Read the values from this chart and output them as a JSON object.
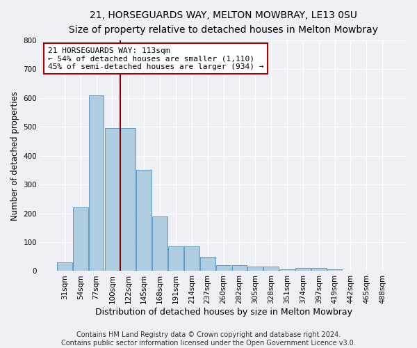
{
  "title1": "21, HORSEGUARDS WAY, MELTON MOWBRAY, LE13 0SU",
  "title2": "Size of property relative to detached houses in Melton Mowbray",
  "xlabel": "Distribution of detached houses by size in Melton Mowbray",
  "ylabel": "Number of detached properties",
  "categories": [
    "31sqm",
    "54sqm",
    "77sqm",
    "100sqm",
    "122sqm",
    "145sqm",
    "168sqm",
    "191sqm",
    "214sqm",
    "237sqm",
    "260sqm",
    "282sqm",
    "305sqm",
    "328sqm",
    "351sqm",
    "374sqm",
    "397sqm",
    "419sqm",
    "442sqm",
    "465sqm",
    "488sqm"
  ],
  "values": [
    30,
    220,
    610,
    495,
    495,
    350,
    190,
    85,
    85,
    50,
    20,
    20,
    15,
    15,
    7,
    10,
    10,
    7,
    0,
    0,
    0
  ],
  "bar_color": "#aecde1",
  "bar_edge_color": "#5a9ec9",
  "annotation_title": "21 HORSEGUARDS WAY: 113sqm",
  "annotation_line1": "← 54% of detached houses are smaller (1,110)",
  "annotation_line2": "45% of semi-detached houses are larger (934) →",
  "annotation_box_color": "#ffffff",
  "annotation_border_color": "#aa0000",
  "vline_x": 3.5,
  "vline_color": "#8b0000",
  "ylim": [
    0,
    800
  ],
  "yticks": [
    0,
    100,
    200,
    300,
    400,
    500,
    600,
    700,
    800
  ],
  "background_color": "#eef0f5",
  "plot_bg_color": "#eef0f5",
  "footer1": "Contains HM Land Registry data © Crown copyright and database right 2024.",
  "footer2": "Contains public sector information licensed under the Open Government Licence v3.0.",
  "title1_fontsize": 10,
  "title2_fontsize": 9,
  "xlabel_fontsize": 9,
  "ylabel_fontsize": 8.5,
  "tick_fontsize": 7.5,
  "footer_fontsize": 7,
  "annotation_fontsize": 8
}
